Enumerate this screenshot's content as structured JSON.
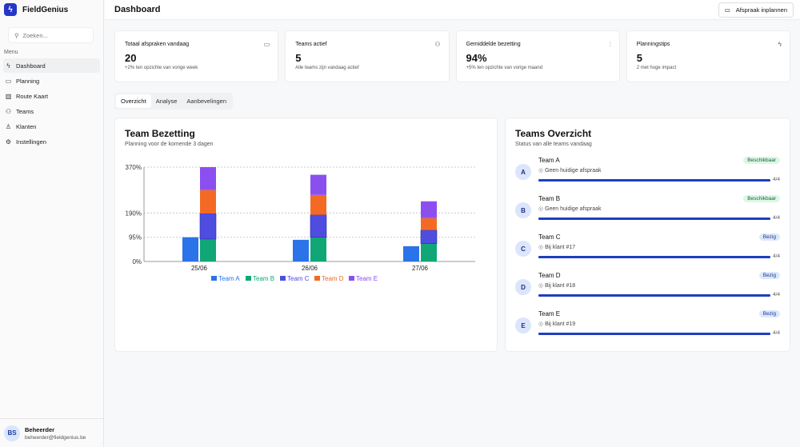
{
  "app": {
    "name": "FieldGenius",
    "search_placeholder": "Zoeken...",
    "menu_label": "Menu"
  },
  "nav": [
    {
      "label": "Dashboard",
      "icon": "zap-icon",
      "glyph": "ϟ"
    },
    {
      "label": "Planning",
      "icon": "calendar-icon",
      "glyph": "▭"
    },
    {
      "label": "Route Kaart",
      "icon": "map-icon",
      "glyph": "▥"
    },
    {
      "label": "Teams",
      "icon": "users-icon",
      "glyph": "⚇"
    },
    {
      "label": "Klanten",
      "icon": "user-icon",
      "glyph": "♙"
    },
    {
      "label": "Instellingen",
      "icon": "gear-icon",
      "glyph": "⚙"
    }
  ],
  "user": {
    "initials": "BS",
    "name": "Beheerder",
    "email": "beheerder@fieldgenius.be"
  },
  "header": {
    "title": "Dashboard",
    "button": "Afspraak inplannen"
  },
  "stats": [
    {
      "label": "Totaal afspraken vandaag",
      "value": "20",
      "sub": "+2% ten opzichte van vorige week",
      "icon": "calendar-icon",
      "glyph": "▭"
    },
    {
      "label": "Teams actief",
      "value": "5",
      "sub": "Alle teams zijn vandaag actief",
      "icon": "users-icon",
      "glyph": "⚇"
    },
    {
      "label": "Gemiddelde bezetting",
      "value": "94%",
      "sub": "+5% ten opzichte van vorige maand",
      "icon": "bar-chart-icon",
      "glyph": "⫶"
    },
    {
      "label": "Planningstips",
      "value": "5",
      "sub": "2 met hoge impact",
      "icon": "zap-icon",
      "glyph": "ϟ"
    }
  ],
  "tabs": [
    "Overzicht",
    "Analyse",
    "Aanbevelingen"
  ],
  "chart_card": {
    "title": "Team Bezetting",
    "subtitle": "Planning voor de komende 3 dagen"
  },
  "chart_data": {
    "type": "bar",
    "categories": [
      "25/06",
      "26/06",
      "27/06"
    ],
    "ylim": [
      0,
      370
    ],
    "yticks": [
      "0%",
      "95%",
      "190%",
      "370%"
    ],
    "ytick_values": [
      0,
      95,
      190,
      370
    ],
    "series": [
      {
        "name": "Team A",
        "color": "#2b73e8",
        "stack": "a",
        "values": [
          95,
          85,
          60
        ]
      },
      {
        "name": "Team B",
        "color": "#10a675",
        "stack": "b",
        "values": [
          88,
          95,
          70
        ]
      },
      {
        "name": "Team C",
        "color": "#4f4de0",
        "stack": "b",
        "values": [
          100,
          88,
          53
        ]
      },
      {
        "name": "Team D",
        "color": "#f46a25",
        "stack": "b",
        "values": [
          92,
          78,
          47
        ]
      },
      {
        "name": "Team E",
        "color": "#8b4ff0",
        "stack": "b",
        "values": [
          90,
          79,
          66
        ]
      }
    ],
    "legend": "bottom",
    "grid": true
  },
  "teams_card": {
    "title": "Teams Overzicht",
    "subtitle": "Status van alle teams vandaag"
  },
  "teams": [
    {
      "initial": "A",
      "name": "Team A",
      "location": "Geen huidige afspraak",
      "status": "Beschikbaar",
      "progress": "4/4",
      "fill": 1,
      "badge_bg": "#dcf7e6",
      "badge_fg": "#17663a"
    },
    {
      "initial": "B",
      "name": "Team B",
      "location": "Geen huidige afspraak",
      "status": "Beschikbaar",
      "progress": "4/4",
      "fill": 1,
      "badge_bg": "#dcf7e6",
      "badge_fg": "#17663a"
    },
    {
      "initial": "C",
      "name": "Team C",
      "location": "Bij klant #17",
      "status": "Bezig",
      "progress": "4/4",
      "fill": 1,
      "badge_bg": "#dde7fb",
      "badge_fg": "#1d3a8a"
    },
    {
      "initial": "D",
      "name": "Team D",
      "location": "Bij klant #18",
      "status": "Bezig",
      "progress": "4/4",
      "fill": 1,
      "badge_bg": "#dde7fb",
      "badge_fg": "#1d3a8a"
    },
    {
      "initial": "E",
      "name": "Team E",
      "location": "Bij klant #19",
      "status": "Bezig",
      "progress": "4/4",
      "fill": 1,
      "badge_bg": "#dde7fb",
      "badge_fg": "#1d3a8a"
    }
  ]
}
